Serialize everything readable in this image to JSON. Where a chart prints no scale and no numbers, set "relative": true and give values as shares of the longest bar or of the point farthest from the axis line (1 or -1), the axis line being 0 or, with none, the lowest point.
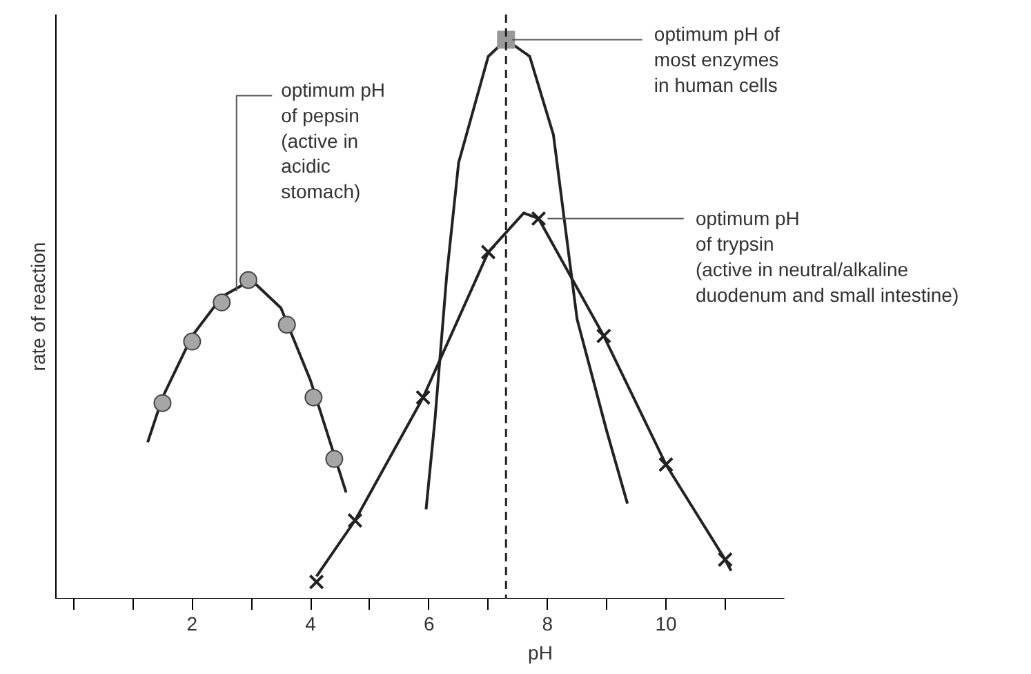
{
  "chart_data": {
    "type": "line",
    "relative": true,
    "xlabel": "pH",
    "ylabel": "rate of reaction",
    "xlim": [
      -0.3,
      12.0
    ],
    "xticks": [
      {
        "value": 0,
        "label": null
      },
      {
        "value": 1,
        "label": null
      },
      2,
      {
        "value": 3,
        "label": null
      },
      4,
      {
        "value": 5,
        "label": null
      },
      6,
      {
        "value": 7,
        "label": null
      },
      8,
      {
        "value": 9,
        "label": null
      },
      10,
      {
        "value": 11,
        "label": null
      }
    ],
    "tick_labels": "x",
    "grid": false,
    "line_style": "solid",
    "series": [
      {
        "color": "#222222",
        "marker": "none",
        "x": [
          1.25,
          1.5,
          2,
          2.5,
          3,
          3.5,
          4,
          4.3,
          4.6
        ],
        "values": [
          0.28,
          0.36,
          0.47,
          0.54,
          0.57,
          0.52,
          0.39,
          0.29,
          0.19
        ]
      },
      {
        "type": "scatter",
        "color": "#a6a6a6",
        "marker": "circle",
        "x": [
          1.5,
          2.0,
          2.5,
          2.95,
          3.6,
          4.05,
          4.4
        ],
        "values": [
          0.35,
          0.46,
          0.53,
          0.57,
          0.49,
          0.36,
          0.25
        ]
      },
      {
        "color": "#222222",
        "marker": "none",
        "x": [
          4.1,
          4.75,
          5.9,
          7.0,
          7.6,
          7.85,
          8.95,
          10,
          11,
          11.1
        ],
        "values": [
          0.04,
          0.14,
          0.36,
          0.62,
          0.69,
          0.68,
          0.47,
          0.24,
          0.07,
          0.05
        ]
      },
      {
        "type": "scatter",
        "color": "#222222",
        "marker": "cross",
        "x": [
          4.1,
          4.75,
          5.9,
          7.0,
          7.85,
          8.95,
          10.0,
          11.0
        ],
        "values": [
          0.03,
          0.14,
          0.36,
          0.62,
          0.68,
          0.47,
          0.24,
          0.07
        ]
      },
      {
        "color": "#222222",
        "marker": "none",
        "x": [
          5.95,
          6.1,
          6.3,
          6.5,
          7.0,
          7.3,
          7.7,
          8.1,
          8.5,
          9.0,
          9.35
        ],
        "values": [
          0.16,
          0.32,
          0.58,
          0.78,
          0.97,
          1.0,
          0.97,
          0.83,
          0.5,
          0.3,
          0.17
        ]
      },
      {
        "type": "scatter",
        "color": "#999999",
        "marker": "square",
        "x": [
          7.3
        ],
        "values": [
          1.0
        ]
      }
    ],
    "ref_lines": [
      {
        "axis": "x",
        "value": 7.3,
        "label": null,
        "color": "#222222",
        "line_style": "dashed"
      }
    ],
    "annotations": [
      {
        "text": "optimum pH\nof pepsin\n(active in\nacidic\nstomach)",
        "x": 2.75,
        "y": 0.55
      },
      {
        "text": "optimum pH of\nmost enzymes\nin human cells",
        "x": 7.3,
        "y": 1.0
      },
      {
        "text": "optimum pH\nof trypsin\n(active in neutral/alkaline\nduodenum and small intestine)",
        "x": 7.9,
        "y": 0.68
      }
    ]
  }
}
